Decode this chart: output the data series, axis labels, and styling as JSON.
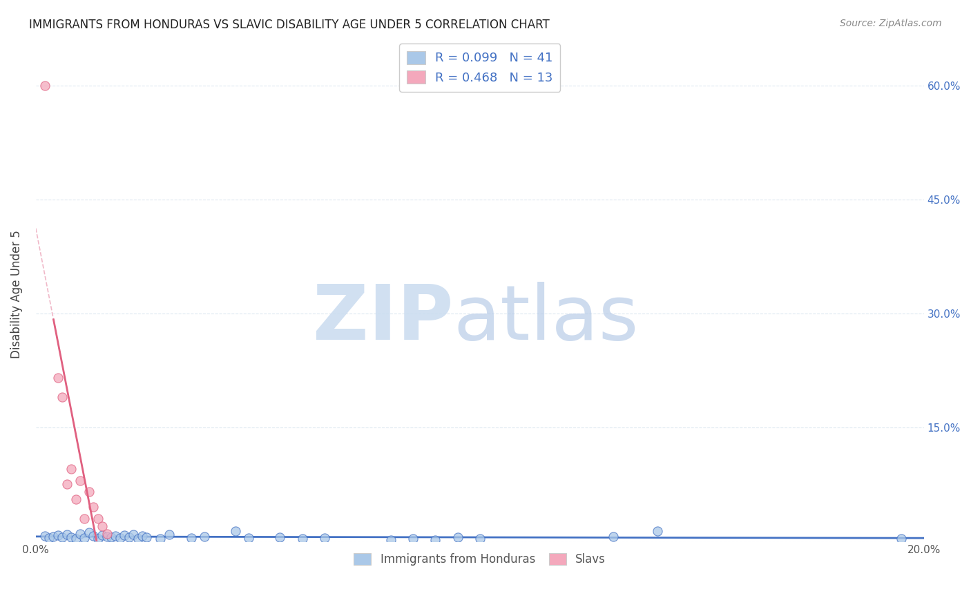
{
  "title": "IMMIGRANTS FROM HONDURAS VS SLAVIC DISABILITY AGE UNDER 5 CORRELATION CHART",
  "source": "Source: ZipAtlas.com",
  "ylabel": "Disability Age Under 5",
  "xlim": [
    0.0,
    0.2
  ],
  "ylim": [
    0.0,
    0.65
  ],
  "xticks": [
    0.0,
    0.05,
    0.1,
    0.15,
    0.2
  ],
  "xticklabels": [
    "0.0%",
    "",
    "",
    "",
    "20.0%"
  ],
  "yticks": [
    0.0,
    0.15,
    0.3,
    0.45,
    0.6
  ],
  "right_yticklabels": [
    "",
    "15.0%",
    "30.0%",
    "45.0%",
    "60.0%"
  ],
  "background_color": "#ffffff",
  "grid_color": "#dde8f0",
  "honduras_color": "#aac8e8",
  "slavic_color": "#f4a8bc",
  "honduras_line_color": "#4472c4",
  "slavic_line_color": "#e06080",
  "slavic_dash_color": "#f0b8c8",
  "honduras_R": 0.099,
  "slavic_R": 0.468,
  "honduras_N": 41,
  "slavic_N": 13,
  "honduras_scatter": [
    [
      0.002,
      0.007
    ],
    [
      0.003,
      0.004
    ],
    [
      0.004,
      0.006
    ],
    [
      0.005,
      0.008
    ],
    [
      0.006,
      0.005
    ],
    [
      0.007,
      0.009
    ],
    [
      0.008,
      0.005
    ],
    [
      0.009,
      0.003
    ],
    [
      0.01,
      0.01
    ],
    [
      0.011,
      0.004
    ],
    [
      0.012,
      0.012
    ],
    [
      0.013,
      0.007
    ],
    [
      0.014,
      0.003
    ],
    [
      0.015,
      0.008
    ],
    [
      0.016,
      0.006
    ],
    [
      0.017,
      0.005
    ],
    [
      0.018,
      0.007
    ],
    [
      0.019,
      0.004
    ],
    [
      0.02,
      0.008
    ],
    [
      0.021,
      0.005
    ],
    [
      0.022,
      0.009
    ],
    [
      0.023,
      0.003
    ],
    [
      0.024,
      0.007
    ],
    [
      0.025,
      0.005
    ],
    [
      0.028,
      0.003
    ],
    [
      0.03,
      0.009
    ],
    [
      0.035,
      0.004
    ],
    [
      0.038,
      0.006
    ],
    [
      0.045,
      0.013
    ],
    [
      0.048,
      0.004
    ],
    [
      0.055,
      0.005
    ],
    [
      0.06,
      0.003
    ],
    [
      0.065,
      0.004
    ],
    [
      0.08,
      0.002
    ],
    [
      0.085,
      0.003
    ],
    [
      0.09,
      0.002
    ],
    [
      0.095,
      0.005
    ],
    [
      0.1,
      0.003
    ],
    [
      0.13,
      0.006
    ],
    [
      0.14,
      0.013
    ],
    [
      0.195,
      0.003
    ]
  ],
  "slavic_scatter": [
    [
      0.002,
      0.6
    ],
    [
      0.005,
      0.215
    ],
    [
      0.006,
      0.19
    ],
    [
      0.007,
      0.075
    ],
    [
      0.008,
      0.095
    ],
    [
      0.009,
      0.055
    ],
    [
      0.01,
      0.08
    ],
    [
      0.011,
      0.03
    ],
    [
      0.012,
      0.065
    ],
    [
      0.013,
      0.045
    ],
    [
      0.014,
      0.03
    ],
    [
      0.015,
      0.02
    ],
    [
      0.016,
      0.01
    ]
  ],
  "watermark_zip_color": "#ccddf0",
  "watermark_atlas_color": "#b8cce8",
  "legend_label_color": "#4472c4",
  "legend_border_color": "#cccccc",
  "bottom_legend_label_color": "#555555"
}
